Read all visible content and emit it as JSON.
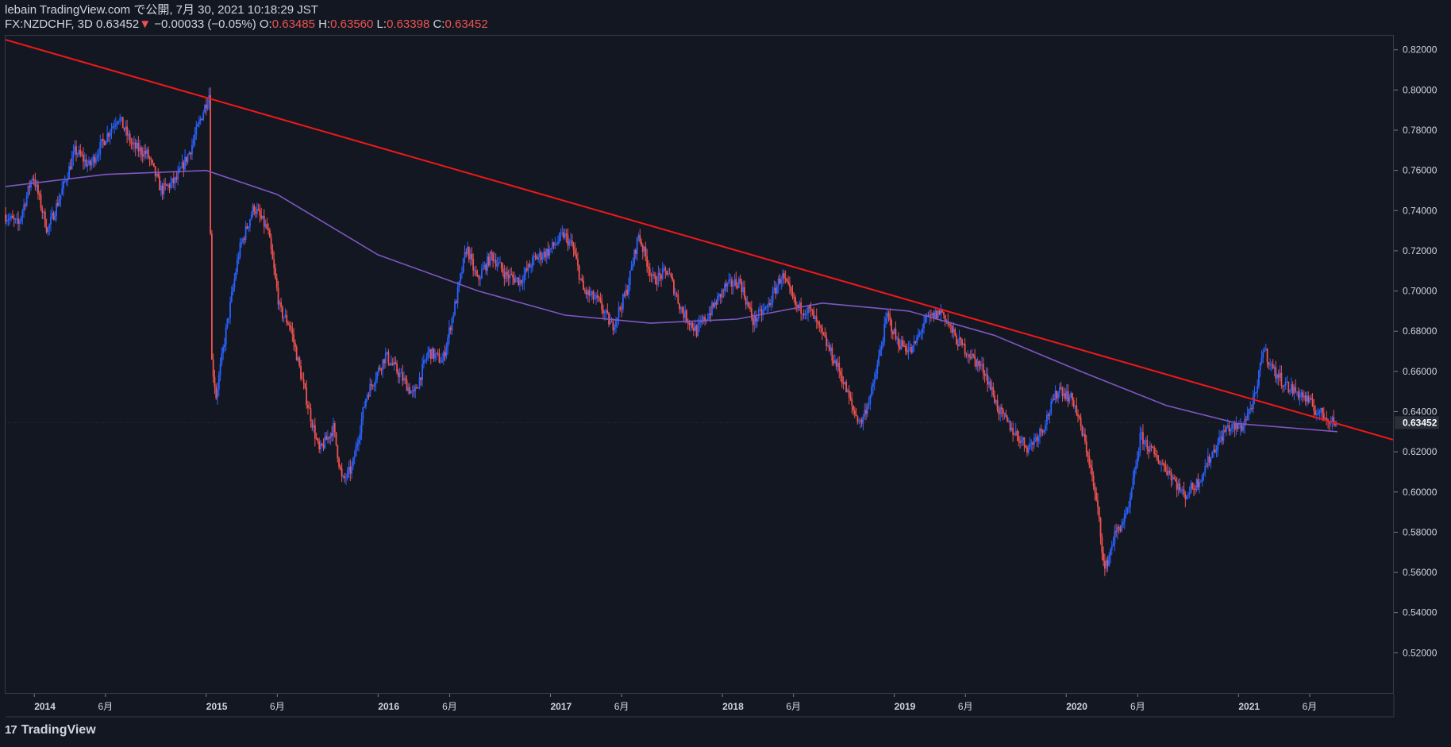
{
  "header": {
    "published": "lebain TradingView.com で公開, 7月 30, 2021 10:18:29 JST",
    "symbol": "FX:NZDCHF, 3D",
    "last": "0.63452",
    "change_arrow": "▼",
    "change": "−0.00033 (−0.05%)",
    "o_label": "O:",
    "o": "0.63485",
    "h_label": "H:",
    "h": "0.63560",
    "l_label": "L:",
    "l": "0.63398",
    "c_label": "C:",
    "c": "0.63452"
  },
  "footer": {
    "logo_text": "TradingView",
    "logo_mark": "17"
  },
  "colors": {
    "background": "#131722",
    "up": "#2962ff",
    "down": "#ef5350",
    "trendline": "#f21818",
    "ma": "#7e57c2",
    "axis_text": "#d1d4dc",
    "border": "#363a45"
  },
  "chart_data": {
    "type": "candlestick",
    "ylim": [
      0.5,
      0.827
    ],
    "y_ticks": [
      "0.52000",
      "0.54000",
      "0.56000",
      "0.58000",
      "0.60000",
      "0.62000",
      "0.64000",
      "0.66000",
      "0.68000",
      "0.70000",
      "0.72000",
      "0.74000",
      "0.76000",
      "0.78000",
      "0.80000",
      "0.82000"
    ],
    "x_range": [
      "2013-11-01",
      "2021-11-25"
    ],
    "x_ticks": [
      {
        "date": "2014-01-01",
        "label": "2014",
        "major": true
      },
      {
        "date": "2014-06-01",
        "label": "6月",
        "major": false
      },
      {
        "date": "2015-01-01",
        "label": "2015",
        "major": true
      },
      {
        "date": "2015-06-01",
        "label": "6月",
        "major": false
      },
      {
        "date": "2016-01-01",
        "label": "2016",
        "major": true
      },
      {
        "date": "2016-06-01",
        "label": "6月",
        "major": false
      },
      {
        "date": "2017-01-01",
        "label": "2017",
        "major": true
      },
      {
        "date": "2017-06-01",
        "label": "6月",
        "major": false
      },
      {
        "date": "2018-01-01",
        "label": "2018",
        "major": true
      },
      {
        "date": "2018-06-01",
        "label": "6月",
        "major": false
      },
      {
        "date": "2019-01-01",
        "label": "2019",
        "major": true
      },
      {
        "date": "2019-06-01",
        "label": "6月",
        "major": false
      },
      {
        "date": "2020-01-01",
        "label": "2020",
        "major": true
      },
      {
        "date": "2020-06-01",
        "label": "6月",
        "major": false
      },
      {
        "date": "2021-01-01",
        "label": "2021",
        "major": true
      },
      {
        "date": "2021-06-01",
        "label": "6月",
        "major": false
      }
    ],
    "last_price": 0.63452,
    "last_price_label": "0.63452",
    "price_path": [
      [
        "2013-11-01",
        0.738
      ],
      [
        "2013-12-01",
        0.733
      ],
      [
        "2014-01-01",
        0.758
      ],
      [
        "2014-02-01",
        0.73
      ],
      [
        "2014-03-01",
        0.748
      ],
      [
        "2014-04-01",
        0.77
      ],
      [
        "2014-05-01",
        0.762
      ],
      [
        "2014-06-01",
        0.775
      ],
      [
        "2014-07-01",
        0.787
      ],
      [
        "2014-08-01",
        0.772
      ],
      [
        "2014-09-01",
        0.768
      ],
      [
        "2014-10-01",
        0.75
      ],
      [
        "2014-11-01",
        0.755
      ],
      [
        "2014-12-01",
        0.77
      ],
      [
        "2015-01-10",
        0.798
      ],
      [
        "2015-01-16",
        0.665
      ],
      [
        "2015-01-25",
        0.648
      ],
      [
        "2015-02-15",
        0.68
      ],
      [
        "2015-03-15",
        0.72
      ],
      [
        "2015-04-15",
        0.742
      ],
      [
        "2015-05-15",
        0.73
      ],
      [
        "2015-06-10",
        0.69
      ],
      [
        "2015-07-01",
        0.683
      ],
      [
        "2015-08-01",
        0.65
      ],
      [
        "2015-09-01",
        0.62
      ],
      [
        "2015-10-01",
        0.632
      ],
      [
        "2015-10-20",
        0.605
      ],
      [
        "2015-11-10",
        0.612
      ],
      [
        "2015-12-10",
        0.648
      ],
      [
        "2016-01-20",
        0.668
      ],
      [
        "2016-02-20",
        0.658
      ],
      [
        "2016-03-20",
        0.648
      ],
      [
        "2016-04-20",
        0.67
      ],
      [
        "2016-05-20",
        0.665
      ],
      [
        "2016-06-20",
        0.698
      ],
      [
        "2016-07-10",
        0.722
      ],
      [
        "2016-08-01",
        0.705
      ],
      [
        "2016-09-01",
        0.718
      ],
      [
        "2016-10-01",
        0.708
      ],
      [
        "2016-11-01",
        0.705
      ],
      [
        "2016-12-01",
        0.716
      ],
      [
        "2017-01-01",
        0.72
      ],
      [
        "2017-02-01",
        0.728
      ],
      [
        "2017-02-20",
        0.722
      ],
      [
        "2017-03-15",
        0.7
      ],
      [
        "2017-04-15",
        0.695
      ],
      [
        "2017-05-15",
        0.682
      ],
      [
        "2017-06-15",
        0.7
      ],
      [
        "2017-07-10",
        0.728
      ],
      [
        "2017-08-10",
        0.705
      ],
      [
        "2017-09-10",
        0.71
      ],
      [
        "2017-10-10",
        0.69
      ],
      [
        "2017-11-10",
        0.68
      ],
      [
        "2017-12-10",
        0.69
      ],
      [
        "2018-01-10",
        0.702
      ],
      [
        "2018-02-10",
        0.705
      ],
      [
        "2018-03-10",
        0.685
      ],
      [
        "2018-04-10",
        0.692
      ],
      [
        "2018-05-10",
        0.708
      ],
      [
        "2018-06-10",
        0.692
      ],
      [
        "2018-07-10",
        0.69
      ],
      [
        "2018-08-10",
        0.675
      ],
      [
        "2018-09-10",
        0.66
      ],
      [
        "2018-10-10",
        0.64
      ],
      [
        "2018-10-25",
        0.634
      ],
      [
        "2018-11-20",
        0.652
      ],
      [
        "2018-12-20",
        0.688
      ],
      [
        "2019-01-10",
        0.675
      ],
      [
        "2019-02-10",
        0.67
      ],
      [
        "2019-03-10",
        0.685
      ],
      [
        "2019-04-15",
        0.69
      ],
      [
        "2019-05-15",
        0.676
      ],
      [
        "2019-06-15",
        0.668
      ],
      [
        "2019-07-15",
        0.66
      ],
      [
        "2019-08-15",
        0.64
      ],
      [
        "2019-09-15",
        0.63
      ],
      [
        "2019-10-15",
        0.622
      ],
      [
        "2019-11-15",
        0.632
      ],
      [
        "2019-12-20",
        0.652
      ],
      [
        "2020-01-20",
        0.645
      ],
      [
        "2020-02-20",
        0.618
      ],
      [
        "2020-03-15",
        0.585
      ],
      [
        "2020-03-25",
        0.56
      ],
      [
        "2020-04-15",
        0.578
      ],
      [
        "2020-05-15",
        0.59
      ],
      [
        "2020-06-10",
        0.628
      ],
      [
        "2020-07-10",
        0.618
      ],
      [
        "2020-08-10",
        0.61
      ],
      [
        "2020-09-10",
        0.598
      ],
      [
        "2020-10-10",
        0.605
      ],
      [
        "2020-11-10",
        0.62
      ],
      [
        "2020-12-10",
        0.632
      ],
      [
        "2021-01-10",
        0.632
      ],
      [
        "2021-02-10",
        0.648
      ],
      [
        "2021-02-25",
        0.672
      ],
      [
        "2021-03-20",
        0.66
      ],
      [
        "2021-04-20",
        0.652
      ],
      [
        "2021-05-20",
        0.648
      ],
      [
        "2021-06-20",
        0.64
      ],
      [
        "2021-07-30",
        0.6345
      ]
    ],
    "moving_average": [
      [
        "2013-11-01",
        0.752
      ],
      [
        "2014-06-01",
        0.758
      ],
      [
        "2015-01-01",
        0.76
      ],
      [
        "2015-06-01",
        0.748
      ],
      [
        "2016-01-01",
        0.718
      ],
      [
        "2016-08-01",
        0.7
      ],
      [
        "2017-02-01",
        0.688
      ],
      [
        "2017-08-01",
        0.684
      ],
      [
        "2018-02-01",
        0.686
      ],
      [
        "2018-08-01",
        0.694
      ],
      [
        "2019-02-01",
        0.69
      ],
      [
        "2019-08-01",
        0.678
      ],
      [
        "2020-02-01",
        0.66
      ],
      [
        "2020-08-01",
        0.643
      ],
      [
        "2021-01-01",
        0.634
      ],
      [
        "2021-07-30",
        0.63
      ]
    ],
    "trendline": [
      [
        "2013-11-01",
        0.825
      ],
      [
        "2021-11-25",
        0.626
      ]
    ]
  }
}
